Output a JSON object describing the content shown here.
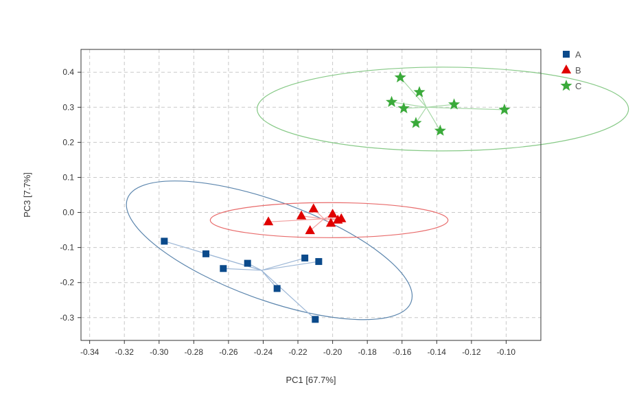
{
  "chart_data": {
    "type": "scatter",
    "title": "",
    "xlabel": "PC1 [67.7%]",
    "ylabel": "PC3 [7.7%]",
    "xlim": [
      -0.345,
      -0.08
    ],
    "ylim": [
      -0.365,
      0.465
    ],
    "xticks": [
      -0.34,
      -0.32,
      -0.3,
      -0.28,
      -0.26,
      -0.24,
      -0.22,
      -0.2,
      -0.18,
      -0.16,
      -0.14,
      -0.12,
      -0.1
    ],
    "xtick_labels": [
      "-0.34",
      "-0.32",
      "-0.30",
      "-0.28",
      "-0.26",
      "-0.24",
      "-0.22",
      "-0.20",
      "-0.18",
      "-0.16",
      "-0.14",
      "-0.12",
      "-0.10"
    ],
    "yticks": [
      -0.3,
      -0.2,
      -0.1,
      0.0,
      0.1,
      0.2,
      0.3,
      0.4
    ],
    "ytick_labels": [
      "-0.3",
      "-0.2",
      "-0.1",
      "0.0",
      "0.1",
      "0.2",
      "0.3",
      "0.4"
    ],
    "grid": true,
    "legend_position": "top-right",
    "series": [
      {
        "name": "A",
        "marker": "square",
        "color": "#0b4a8b",
        "line_color": "#9db7d6",
        "ellipse_color": "#5b85ad",
        "centroid": [
          -0.241,
          -0.165
        ],
        "ellipse": {
          "center": [
            -0.2365,
            -0.108
          ],
          "rx": 0.087,
          "ry": 0.1405,
          "angle_deg": -20
        },
        "points": [
          [
            -0.297,
            -0.082
          ],
          [
            -0.273,
            -0.118
          ],
          [
            -0.263,
            -0.16
          ],
          [
            -0.249,
            -0.145
          ],
          [
            -0.232,
            -0.217
          ],
          [
            -0.216,
            -0.13
          ],
          [
            -0.208,
            -0.14
          ],
          [
            -0.21,
            -0.305
          ]
        ]
      },
      {
        "name": "B",
        "marker": "triangle",
        "color": "#e00000",
        "line_color": "#f2a0a0",
        "ellipse_color": "#e86a6a",
        "centroid": [
          -0.205,
          -0.018
        ],
        "ellipse": {
          "center": [
            -0.202,
            -0.022
          ],
          "rx": 0.0685,
          "ry": 0.05,
          "angle_deg": 0
        },
        "points": [
          [
            -0.237,
            -0.027
          ],
          [
            -0.218,
            -0.01
          ],
          [
            -0.211,
            0.01
          ],
          [
            -0.213,
            -0.052
          ],
          [
            -0.201,
            -0.031
          ],
          [
            -0.2,
            -0.005
          ],
          [
            -0.197,
            -0.022
          ],
          [
            -0.195,
            -0.018
          ]
        ]
      },
      {
        "name": "C",
        "marker": "star",
        "color": "#3aaa3a",
        "line_color": "#a6d8a6",
        "ellipse_color": "#86c986",
        "centroid": [
          -0.146,
          0.3
        ],
        "ellipse": {
          "center": [
            -0.1365,
            0.295
          ],
          "rx": 0.107,
          "ry": 0.1195,
          "angle_deg": 0
        },
        "points": [
          [
            -0.161,
            0.385
          ],
          [
            -0.15,
            0.343
          ],
          [
            -0.166,
            0.315
          ],
          [
            -0.159,
            0.297
          ],
          [
            -0.152,
            0.255
          ],
          [
            -0.138,
            0.233
          ],
          [
            -0.13,
            0.308
          ],
          [
            -0.101,
            0.293
          ]
        ]
      }
    ]
  }
}
